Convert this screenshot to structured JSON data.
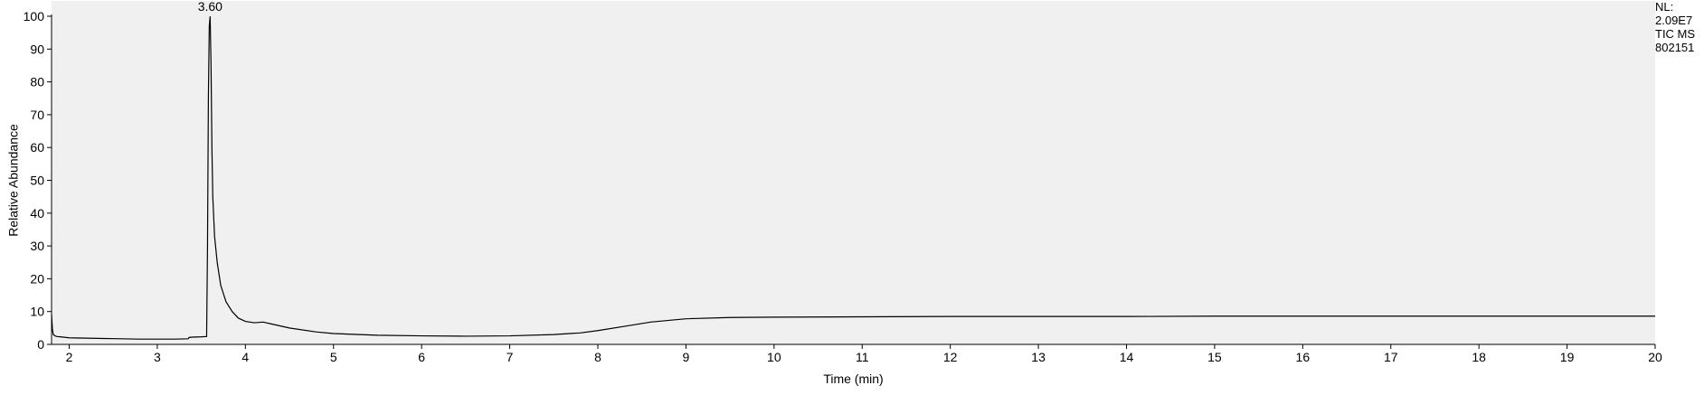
{
  "info": {
    "nl_label": "NL:",
    "nl_value": "2.09E7",
    "scan_label": "TIC  MS",
    "file_id": "802151"
  },
  "colors": {
    "plot_background": "#f0f0f0",
    "trace": "#000000",
    "axis": "#000000"
  },
  "chart_data": {
    "type": "line",
    "xlabel": "Time (min)",
    "ylabel": "Relative Abundance",
    "xlim": [
      1.8,
      20
    ],
    "ylim": [
      0,
      100
    ],
    "x_ticks": [
      2,
      3,
      4,
      5,
      6,
      7,
      8,
      9,
      10,
      11,
      12,
      13,
      14,
      15,
      16,
      17,
      18,
      19,
      20
    ],
    "y_ticks": [
      0,
      10,
      20,
      30,
      40,
      50,
      60,
      70,
      80,
      90,
      100
    ],
    "grid": false,
    "legend": "none",
    "peak_labels": [
      {
        "text": "3.60",
        "x": 3.6,
        "y": 100
      }
    ],
    "series": [
      {
        "x": [
          1.8,
          1.81,
          1.82,
          1.84,
          1.86,
          1.9,
          2.0,
          2.2,
          2.4,
          2.6,
          2.8,
          3.0,
          3.2,
          3.35,
          3.36,
          3.4,
          3.5,
          3.56,
          3.57,
          3.58,
          3.59,
          3.6,
          3.61,
          3.62,
          3.63,
          3.65,
          3.68,
          3.72,
          3.78,
          3.85,
          3.92,
          4.0,
          4.1,
          4.2,
          4.3,
          4.5,
          4.8,
          5.0,
          5.5,
          6.0,
          6.5,
          7.0,
          7.5,
          7.8,
          8.0,
          8.3,
          8.6,
          9.0,
          9.5,
          10.0,
          11.0,
          12.0,
          13.0,
          14.0,
          15.0,
          16.0,
          17.0,
          18.0,
          19.0,
          20.0
        ],
        "y": [
          9.0,
          4.5,
          3.0,
          2.6,
          2.4,
          2.3,
          2.0,
          1.9,
          1.8,
          1.7,
          1.6,
          1.6,
          1.6,
          1.7,
          2.1,
          2.2,
          2.3,
          2.4,
          30,
          75,
          97,
          100,
          85,
          60,
          45,
          33,
          25,
          18,
          13,
          10,
          8,
          7.0,
          6.6,
          6.8,
          6.2,
          5.0,
          3.8,
          3.3,
          2.8,
          2.6,
          2.5,
          2.6,
          3.0,
          3.5,
          4.2,
          5.5,
          6.8,
          7.8,
          8.2,
          8.3,
          8.4,
          8.5,
          8.5,
          8.5,
          8.6,
          8.6,
          8.6,
          8.6,
          8.6,
          8.6
        ]
      }
    ]
  }
}
